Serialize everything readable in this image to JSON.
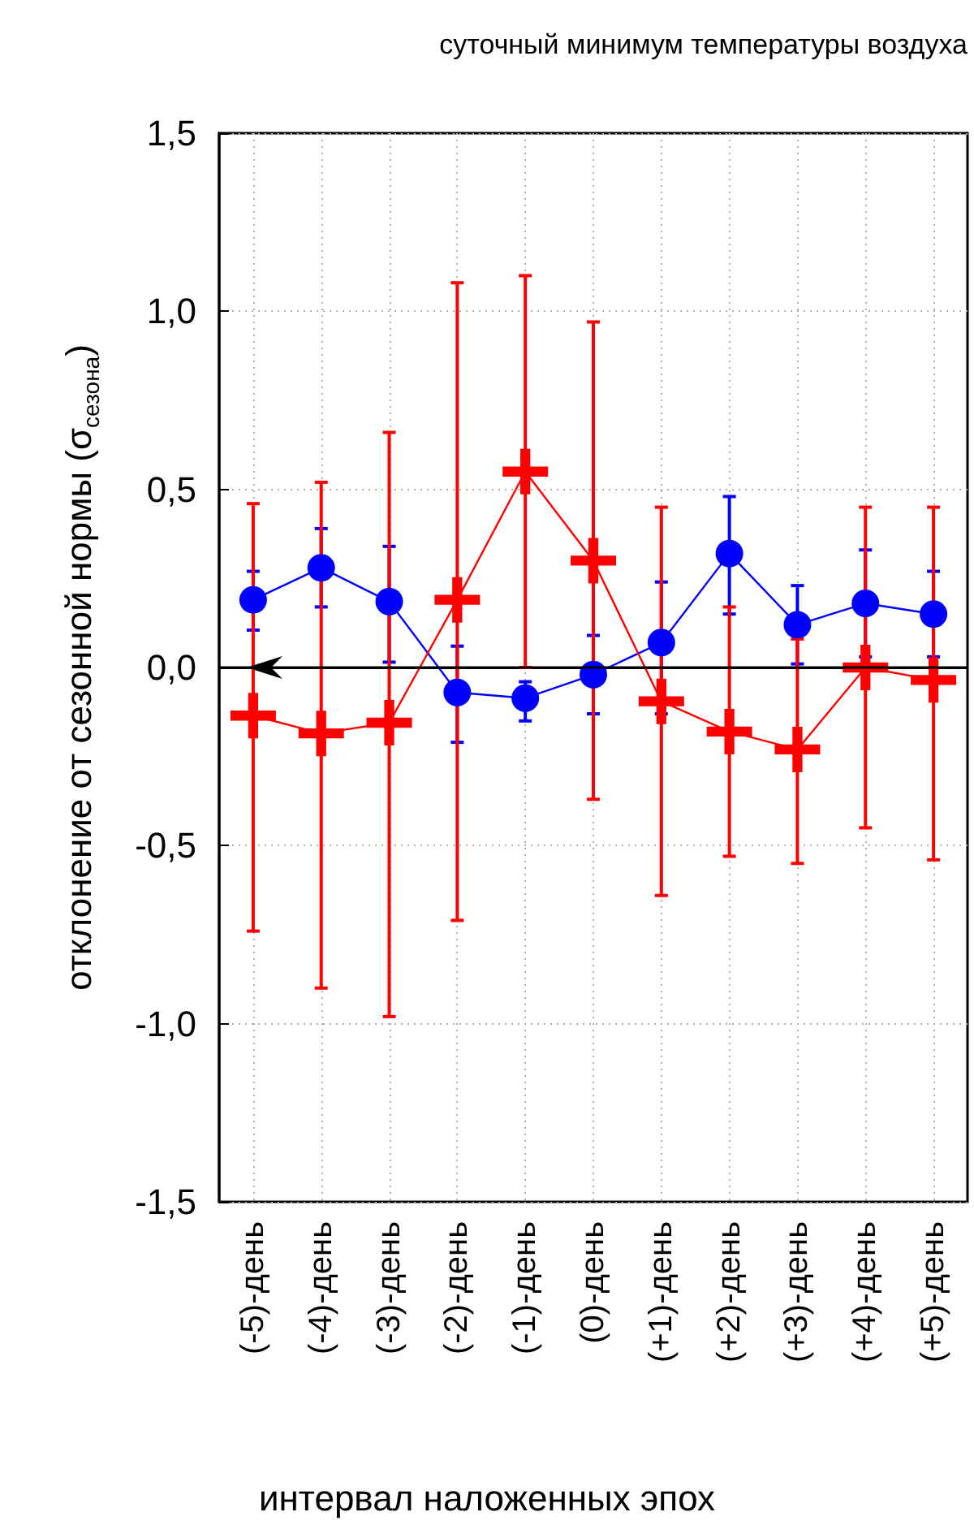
{
  "chart_data": {
    "type": "line",
    "title": "суточный минимум температуры воздуха",
    "xlabel": "интервал наложенных эпох",
    "ylabel": "отклонение от сезонной нормы (σ$_{сезона}$)",
    "categories": [
      "(-5)-день",
      "(-4)-день",
      "(-3)-день",
      "(-2)-день",
      "(-1)-день",
      "(0)-день",
      "(+1)-день",
      "(+2)-день",
      "(+3)-день",
      "(+4)-день",
      "(+5)-день"
    ],
    "series": [
      {
        "color": "#0000ff",
        "marker": "circle",
        "values": [
          0.19,
          0.28,
          0.185,
          -0.07,
          -0.086,
          -0.02,
          0.07,
          0.32,
          0.12,
          0.18,
          0.15
        ],
        "errors": [
          [
            0.105,
            0.27
          ],
          [
            0.17,
            0.39
          ],
          [
            0.015,
            0.34
          ],
          [
            -0.21,
            0.06
          ],
          [
            -0.15,
            -0.04
          ],
          [
            -0.13,
            0.09
          ],
          [
            -0.13,
            0.24
          ],
          [
            0.15,
            0.48
          ],
          [
            0.01,
            0.23
          ],
          [
            0.03,
            0.33
          ],
          [
            0.03,
            0.27
          ]
        ]
      },
      {
        "color": "#ff0000",
        "marker": "cross",
        "values": [
          -0.135,
          -0.185,
          -0.155,
          0.19,
          0.55,
          0.3,
          -0.095,
          -0.18,
          -0.23,
          0.0,
          -0.035
        ],
        "errors": [
          [
            -0.74,
            0.46
          ],
          [
            -0.9,
            0.52
          ],
          [
            -0.98,
            0.66
          ],
          [
            -0.71,
            1.08
          ],
          [
            0.0,
            1.1
          ],
          [
            -0.37,
            0.97
          ],
          [
            -0.64,
            0.45
          ],
          [
            -0.53,
            0.17
          ],
          [
            -0.55,
            0.08
          ],
          [
            -0.45,
            0.45
          ],
          [
            -0.54,
            0.45
          ]
        ]
      }
    ],
    "ylim": [
      -1.5,
      1.5
    ],
    "yticks": [
      {
        "value": -1.5,
        "label": "-1,5"
      },
      {
        "value": -1.0,
        "label": "-1,0"
      },
      {
        "value": -0.5,
        "label": "-0,5"
      },
      {
        "value": 0,
        "label": "0,0"
      },
      {
        "value": 0.5,
        "label": "0,5"
      },
      {
        "value": 1.0,
        "label": "1,0"
      },
      {
        "value": 1.5,
        "label": "1,5"
      }
    ],
    "ref_lines": [
      {
        "axis": "y",
        "value": 0,
        "color": "#000000",
        "line_style": "solid"
      }
    ],
    "grid": true,
    "line_style": "solid"
  }
}
